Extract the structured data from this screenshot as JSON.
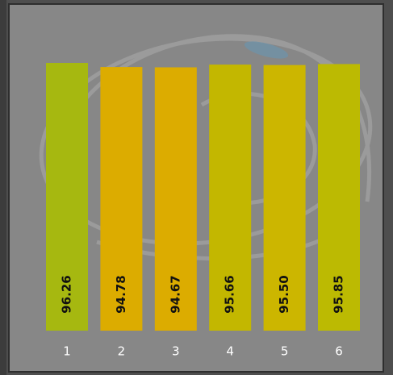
{
  "chart_data": {
    "type": "bar",
    "categories": [
      "1",
      "2",
      "3",
      "4",
      "5",
      "6"
    ],
    "values": [
      96.26,
      94.78,
      94.67,
      95.66,
      95.5,
      95.85
    ],
    "value_labels": [
      "96.26",
      "94.78",
      "94.67",
      "95.66",
      "95.50",
      "95.85"
    ],
    "colors": [
      "#a6b810",
      "#dcac00",
      "#dcac00",
      "#c3b700",
      "#ccb600",
      "#bcba02"
    ]
  }
}
